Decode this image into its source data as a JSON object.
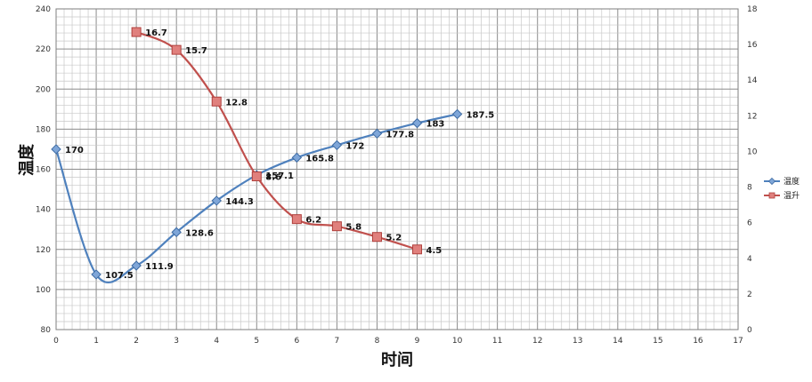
{
  "chart_data": {
    "type": "line",
    "xlabel": "时间",
    "ylabel": "温度",
    "x_ticks": [
      "0",
      "1",
      "2",
      "3",
      "4",
      "5",
      "6",
      "7",
      "8",
      "9",
      "10",
      "11",
      "12",
      "13",
      "14",
      "15",
      "16",
      "17"
    ],
    "y_ticks": [
      "80",
      "100",
      "120",
      "140",
      "160",
      "180",
      "200",
      "220",
      "240"
    ],
    "y2_ticks": [
      "0",
      "2",
      "4",
      "6",
      "8",
      "10",
      "12",
      "14",
      "16",
      "18"
    ],
    "xlim": [
      0,
      17
    ],
    "ylim": [
      80,
      240
    ],
    "y2lim": [
      0,
      18
    ],
    "grid": true,
    "legend_position": "right",
    "series": [
      {
        "name": "温度",
        "axis": "left",
        "color": "#4f81bd",
        "marker": "diamond",
        "smooth": true,
        "x": [
          0,
          1,
          2,
          3,
          4,
          5,
          6,
          7,
          8,
          9,
          10
        ],
        "y": [
          170,
          107.5,
          111.9,
          128.6,
          144.3,
          157.1,
          165.8,
          172,
          177.8,
          183,
          187.5
        ],
        "labels": [
          "170",
          "107.5",
          "111.9",
          "128.6",
          "144.3",
          "157.1",
          "165.8",
          "172",
          "177.8",
          "183",
          "187.5"
        ]
      },
      {
        "name": "温升",
        "axis": "right",
        "color": "#c0504d",
        "marker": "square",
        "smooth": true,
        "x": [
          2,
          3,
          4,
          5,
          6,
          7,
          8,
          9
        ],
        "y": [
          16.7,
          15.7,
          12.8,
          8.6,
          6.2,
          5.8,
          5.2,
          4.5
        ],
        "labels": [
          "16.7",
          "15.7",
          "12.8",
          "8.6",
          "6.2",
          "5.8",
          "5.2",
          "4.5"
        ]
      }
    ]
  }
}
